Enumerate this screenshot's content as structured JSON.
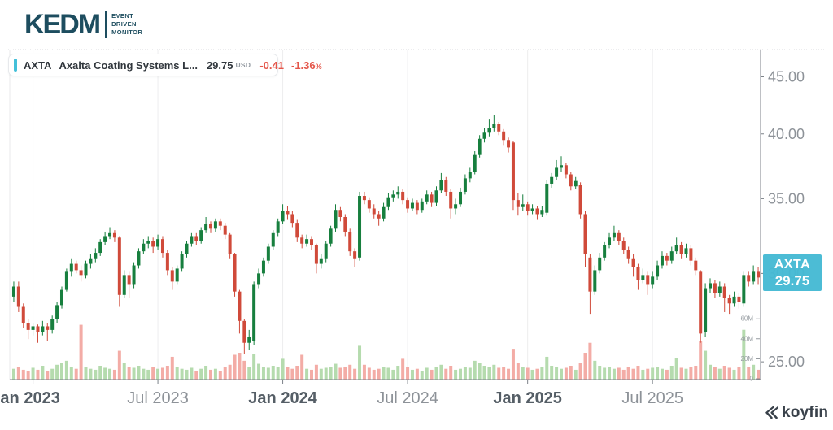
{
  "brand": {
    "name": "KEDM",
    "tagline_lines": [
      "EVENT",
      "DRIVEN",
      "MONITOR"
    ]
  },
  "header": {
    "ticker": "AXTA",
    "name": "Axalta Coating Systems L...",
    "price": "29.75",
    "currency": "USD",
    "change": "-0.41",
    "change_pct": "-1.36",
    "pct_sign": "%"
  },
  "price_tag": {
    "ticker": "AXTA",
    "price": "29.75"
  },
  "watermark": {
    "text": "koyfin"
  },
  "chart_data": {
    "type": "candlestick_with_volume",
    "interval": "weekly",
    "x_range": [
      "Dec 2022",
      "Dec 2025"
    ],
    "y_scale": "log",
    "y_axis_side": "right",
    "price_domain": [
      24.1,
      47.6
    ],
    "y_ticks": [
      {
        "label": "45.00",
        "value": 45.0
      },
      {
        "label": "40.00",
        "value": 40.0
      },
      {
        "label": "35.00",
        "value": 35.0
      },
      {
        "label": "30.00",
        "value": 30.0
      },
      {
        "label": "25.00",
        "value": 25.0
      }
    ],
    "x_ticks": [
      {
        "label": "Jan 2023",
        "week": 4,
        "bold": true
      },
      {
        "label": "Jul 2023",
        "week": 30,
        "bold": false
      },
      {
        "label": "Jan 2024",
        "week": 56,
        "bold": true
      },
      {
        "label": "Jul 2024",
        "week": 82,
        "bold": false
      },
      {
        "label": "Jan 2025",
        "week": 107,
        "bold": true
      },
      {
        "label": "Jul 2025",
        "week": 133,
        "bold": false
      }
    ],
    "volume_ticks": [
      {
        "label": "60M",
        "value": 60
      },
      {
        "label": "40M",
        "value": 40
      },
      {
        "label": "20M",
        "value": 20
      },
      {
        "label": "0",
        "value": 0
      }
    ],
    "colors": {
      "up": "#177f3e",
      "down": "#d04a3a",
      "vol_up": "#b5dbae",
      "vol_down": "#f3aca6",
      "grid": "#ededee",
      "axis": "#7c8289",
      "label": "#8d9298",
      "label_bold": "#555e66",
      "vol_label": "#989ea3",
      "top_border": "#d8dadc"
    },
    "last_price": 29.75,
    "candles": [
      [
        28.6,
        29.5,
        28.3,
        29.2
      ],
      [
        29.2,
        29.5,
        27.7,
        28.0
      ],
      [
        28.0,
        28.2,
        26.8,
        27.1
      ],
      [
        27.1,
        27.3,
        26.2,
        26.7
      ],
      [
        26.7,
        27.1,
        26.4,
        26.9
      ],
      [
        26.9,
        27.0,
        26.0,
        26.6
      ],
      [
        26.6,
        27.2,
        26.4,
        26.9
      ],
      [
        26.9,
        27.1,
        26.1,
        26.7
      ],
      [
        26.7,
        27.5,
        26.5,
        27.3
      ],
      [
        27.3,
        28.3,
        27.1,
        28.1
      ],
      [
        28.1,
        29.2,
        27.9,
        29.0
      ],
      [
        29.0,
        30.3,
        28.9,
        30.1
      ],
      [
        30.1,
        30.9,
        29.8,
        30.6
      ],
      [
        30.6,
        30.8,
        30.0,
        30.2
      ],
      [
        30.2,
        30.5,
        29.5,
        29.9
      ],
      [
        29.9,
        30.8,
        29.7,
        30.6
      ],
      [
        30.6,
        31.2,
        30.3,
        30.9
      ],
      [
        30.9,
        31.6,
        30.7,
        31.3
      ],
      [
        31.3,
        32.2,
        31.1,
        32.0
      ],
      [
        32.0,
        32.7,
        31.8,
        32.4
      ],
      [
        32.4,
        33.0,
        32.2,
        32.6
      ],
      [
        32.6,
        32.8,
        32.0,
        32.3
      ],
      [
        32.3,
        32.4,
        28.0,
        28.7
      ],
      [
        28.7,
        30.2,
        28.5,
        29.9
      ],
      [
        29.9,
        30.1,
        28.5,
        29.3
      ],
      [
        29.3,
        30.7,
        29.1,
        30.5
      ],
      [
        30.5,
        31.6,
        30.3,
        31.4
      ],
      [
        31.4,
        32.2,
        31.2,
        31.9
      ],
      [
        31.9,
        32.4,
        31.6,
        32.1
      ],
      [
        32.1,
        32.3,
        31.3,
        31.7
      ],
      [
        31.7,
        32.5,
        31.5,
        32.2
      ],
      [
        32.2,
        32.4,
        31.0,
        31.3
      ],
      [
        31.3,
        31.5,
        29.9,
        30.2
      ],
      [
        30.2,
        30.4,
        29.0,
        29.5
      ],
      [
        29.5,
        30.5,
        29.3,
        30.3
      ],
      [
        30.3,
        31.4,
        30.1,
        31.2
      ],
      [
        31.2,
        32.1,
        31.0,
        31.9
      ],
      [
        31.9,
        32.6,
        31.7,
        32.4
      ],
      [
        32.4,
        32.6,
        31.8,
        32.1
      ],
      [
        32.1,
        33.0,
        31.9,
        32.8
      ],
      [
        32.8,
        33.7,
        32.6,
        33.2
      ],
      [
        33.2,
        33.4,
        32.6,
        32.9
      ],
      [
        32.9,
        33.6,
        32.7,
        33.4
      ],
      [
        33.4,
        33.6,
        32.8,
        33.1
      ],
      [
        33.1,
        33.3,
        32.2,
        32.5
      ],
      [
        32.5,
        32.6,
        30.9,
        31.2
      ],
      [
        31.2,
        31.3,
        28.6,
        28.9
      ],
      [
        28.9,
        29.0,
        26.5,
        27.2
      ],
      [
        27.2,
        27.3,
        25.4,
        26.0
      ],
      [
        26.0,
        26.7,
        25.6,
        26.3
      ],
      [
        26.1,
        29.5,
        25.9,
        29.3
      ],
      [
        29.3,
        30.3,
        29.1,
        30.0
      ],
      [
        30.0,
        31.0,
        29.8,
        30.8
      ],
      [
        30.8,
        31.9,
        30.6,
        31.7
      ],
      [
        31.7,
        32.8,
        31.5,
        32.6
      ],
      [
        32.6,
        33.6,
        32.4,
        33.4
      ],
      [
        33.4,
        34.6,
        33.2,
        34.1
      ],
      [
        34.1,
        34.5,
        33.5,
        33.9
      ],
      [
        33.9,
        34.1,
        33.0,
        33.3
      ],
      [
        33.3,
        33.5,
        32.0,
        32.3
      ],
      [
        32.3,
        32.5,
        31.6,
        31.9
      ],
      [
        31.9,
        32.5,
        31.7,
        32.2
      ],
      [
        32.2,
        32.4,
        31.5,
        31.8
      ],
      [
        31.8,
        31.9,
        30.0,
        30.6
      ],
      [
        30.6,
        31.2,
        30.3,
        30.9
      ],
      [
        30.9,
        32.1,
        30.7,
        31.9
      ],
      [
        31.9,
        33.1,
        31.7,
        32.9
      ],
      [
        32.9,
        34.6,
        32.7,
        34.2
      ],
      [
        34.2,
        34.4,
        33.4,
        33.7
      ],
      [
        33.7,
        33.9,
        32.4,
        32.7
      ],
      [
        32.7,
        32.9,
        31.1,
        31.4
      ],
      [
        31.4,
        31.6,
        30.4,
        30.9
      ],
      [
        31.0,
        35.5,
        30.8,
        35.2
      ],
      [
        35.2,
        35.5,
        34.6,
        34.9
      ],
      [
        34.9,
        35.1,
        34.0,
        34.3
      ],
      [
        34.3,
        34.6,
        33.6,
        33.9
      ],
      [
        33.9,
        34.1,
        33.1,
        33.6
      ],
      [
        33.6,
        34.7,
        33.4,
        34.4
      ],
      [
        34.4,
        35.4,
        34.2,
        35.1
      ],
      [
        35.1,
        35.6,
        34.8,
        35.3
      ],
      [
        35.3,
        35.9,
        35.0,
        35.5
      ],
      [
        35.5,
        35.7,
        34.6,
        34.9
      ],
      [
        34.9,
        35.1,
        34.0,
        34.3
      ],
      [
        34.3,
        35.0,
        34.1,
        34.7
      ],
      [
        34.7,
        34.9,
        33.9,
        34.2
      ],
      [
        34.2,
        35.0,
        34.0,
        34.8
      ],
      [
        34.8,
        35.6,
        34.6,
        35.3
      ],
      [
        35.3,
        35.5,
        34.4,
        34.7
      ],
      [
        34.7,
        35.9,
        34.5,
        35.6
      ],
      [
        35.6,
        36.9,
        35.4,
        36.4
      ],
      [
        36.4,
        36.6,
        35.2,
        35.5
      ],
      [
        35.5,
        35.7,
        33.6,
        34.3
      ],
      [
        34.3,
        35.0,
        33.9,
        34.6
      ],
      [
        34.6,
        35.8,
        34.4,
        35.5
      ],
      [
        35.5,
        36.8,
        35.3,
        36.5
      ],
      [
        36.5,
        37.3,
        36.2,
        37.0
      ],
      [
        37.0,
        38.6,
        36.8,
        38.3
      ],
      [
        38.3,
        39.9,
        38.1,
        39.6
      ],
      [
        39.6,
        40.5,
        39.3,
        40.1
      ],
      [
        40.1,
        41.2,
        39.8,
        40.5
      ],
      [
        40.5,
        41.6,
        40.2,
        40.8
      ],
      [
        40.8,
        41.0,
        39.9,
        40.2
      ],
      [
        40.2,
        40.4,
        39.1,
        39.5
      ],
      [
        39.5,
        39.7,
        38.5,
        38.9
      ],
      [
        39.3,
        39.4,
        34.2,
        34.9
      ],
      [
        34.9,
        35.4,
        33.8,
        34.4
      ],
      [
        34.4,
        35.3,
        34.1,
        34.6
      ],
      [
        34.6,
        34.8,
        33.8,
        34.1
      ],
      [
        34.1,
        34.6,
        33.9,
        34.3
      ],
      [
        34.3,
        34.5,
        33.5,
        33.9
      ],
      [
        33.9,
        34.5,
        33.7,
        34.2
      ],
      [
        34.0,
        36.4,
        33.8,
        36.1
      ],
      [
        36.1,
        36.9,
        35.8,
        36.6
      ],
      [
        36.6,
        37.9,
        36.4,
        37.3
      ],
      [
        37.3,
        38.2,
        37.0,
        37.5
      ],
      [
        37.5,
        37.7,
        36.5,
        36.8
      ],
      [
        36.8,
        37.0,
        35.6,
        35.9
      ],
      [
        35.9,
        36.6,
        35.7,
        36.3
      ],
      [
        36.0,
        36.2,
        33.6,
        33.9
      ],
      [
        33.9,
        34.1,
        30.4,
        31.2
      ],
      [
        31.0,
        31.2,
        27.6,
        28.9
      ],
      [
        28.9,
        30.5,
        28.7,
        30.2
      ],
      [
        30.2,
        31.3,
        30.0,
        31.0
      ],
      [
        31.0,
        32.0,
        30.8,
        31.8
      ],
      [
        31.8,
        32.6,
        31.6,
        32.3
      ],
      [
        32.3,
        33.1,
        32.1,
        32.6
      ],
      [
        32.6,
        32.8,
        31.8,
        32.1
      ],
      [
        32.1,
        32.3,
        31.2,
        31.5
      ],
      [
        31.5,
        31.7,
        30.6,
        30.9
      ],
      [
        30.9,
        31.2,
        29.8,
        30.4
      ],
      [
        30.4,
        30.6,
        29.0,
        29.6
      ],
      [
        29.6,
        30.3,
        29.4,
        29.9
      ],
      [
        29.9,
        30.1,
        28.7,
        29.3
      ],
      [
        29.3,
        30.1,
        29.1,
        29.8
      ],
      [
        29.8,
        30.8,
        29.6,
        30.5
      ],
      [
        30.5,
        31.4,
        30.3,
        31.1
      ],
      [
        31.1,
        31.3,
        30.5,
        30.8
      ],
      [
        30.8,
        31.7,
        30.6,
        31.4
      ],
      [
        31.4,
        32.3,
        31.2,
        31.8
      ],
      [
        31.8,
        32.0,
        30.9,
        31.2
      ],
      [
        31.2,
        31.9,
        31.0,
        31.6
      ],
      [
        31.6,
        31.8,
        30.5,
        30.8
      ],
      [
        30.8,
        31.0,
        29.9,
        30.2
      ],
      [
        30.1,
        30.2,
        26.0,
        26.5
      ],
      [
        26.6,
        29.4,
        26.3,
        29.1
      ],
      [
        29.1,
        29.7,
        28.8,
        29.4
      ],
      [
        29.4,
        29.6,
        28.5,
        28.8
      ],
      [
        28.8,
        29.5,
        28.6,
        29.2
      ],
      [
        29.2,
        29.4,
        27.7,
        28.5
      ],
      [
        28.5,
        28.7,
        27.6,
        28.2
      ],
      [
        28.2,
        28.9,
        28.0,
        28.6
      ],
      [
        28.6,
        28.8,
        27.9,
        28.3
      ],
      [
        28.2,
        30.1,
        28.0,
        29.9
      ],
      [
        29.9,
        30.1,
        29.2,
        29.5
      ],
      [
        29.5,
        30.5,
        29.3,
        30.1
      ],
      [
        30.1,
        30.4,
        29.3,
        29.75
      ]
    ],
    "volumes_m": [
      10,
      12,
      9,
      8,
      11,
      9,
      13,
      8,
      10,
      14,
      16,
      18,
      12,
      10,
      54,
      12,
      10,
      9,
      13,
      11,
      10,
      9,
      28,
      16,
      12,
      11,
      13,
      10,
      9,
      12,
      10,
      11,
      13,
      22,
      12,
      10,
      9,
      11,
      8,
      10,
      13,
      9,
      10,
      8,
      12,
      14,
      24,
      26,
      18,
      12,
      25,
      15,
      12,
      11,
      13,
      12,
      20,
      12,
      10,
      13,
      24,
      10,
      9,
      14,
      10,
      11,
      12,
      15,
      11,
      12,
      14,
      10,
      33,
      14,
      11,
      9,
      10,
      12,
      11,
      9,
      13,
      20,
      12,
      9,
      10,
      8,
      11,
      9,
      12,
      14,
      10,
      13,
      9,
      10,
      12,
      11,
      18,
      16,
      13,
      12,
      14,
      11,
      12,
      10,
      30,
      16,
      12,
      11,
      9,
      10,
      12,
      22,
      13,
      12,
      10,
      11,
      13,
      9,
      16,
      26,
      36,
      18,
      13,
      11,
      12,
      10,
      11,
      9,
      12,
      10,
      13,
      9,
      10,
      11,
      12,
      10,
      9,
      13,
      21,
      11,
      10,
      12,
      13,
      38,
      28,
      14,
      12,
      10,
      13,
      11,
      9,
      12,
      49,
      12,
      14,
      9
    ]
  }
}
